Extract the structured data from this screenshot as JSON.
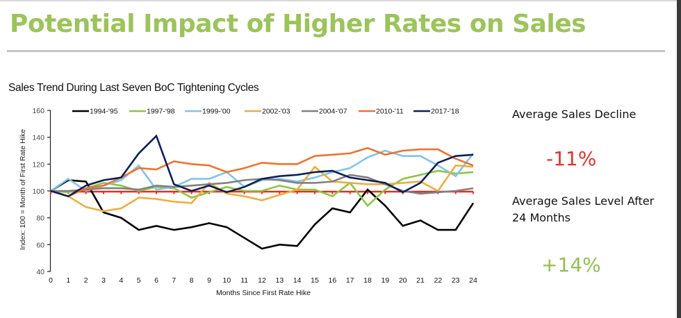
{
  "slide": {
    "title": "Potential Impact of Higher Rates on Sales"
  },
  "stats": {
    "decline_label": "Average Sales Decline",
    "decline_value": "-11%",
    "decline_color": "#e0332a",
    "level_label_line1": "Average Sales Level After",
    "level_label_line2": "24 Months",
    "level_value": "+14%",
    "level_color": "#8fc04e"
  },
  "chart_data": {
    "type": "line",
    "title": "Sales Trend During Last Seven BoC Tightening Cycles",
    "xlabel": "Months Since First Rate Hike",
    "ylabel": "Index: 100 = Month of First Rate Hike",
    "x": [
      0,
      1,
      2,
      3,
      4,
      5,
      6,
      7,
      8,
      9,
      10,
      11,
      12,
      13,
      14,
      15,
      16,
      17,
      18,
      19,
      20,
      21,
      22,
      23,
      24
    ],
    "xlim": [
      0,
      24
    ],
    "ylim": [
      40,
      160
    ],
    "yticks": [
      40,
      60,
      80,
      100,
      120,
      140,
      160
    ],
    "grid": false,
    "legend_position": "top",
    "reference_line": {
      "value": 100,
      "color": "#ee2a1b"
    },
    "series": [
      {
        "name": "1994-'95",
        "color": "#000000",
        "values": [
          100,
          108,
          107,
          84,
          80,
          71,
          74,
          71,
          73,
          76,
          73,
          65,
          57,
          60,
          59,
          75,
          87,
          84,
          101,
          89,
          74,
          78,
          71,
          71,
          91
        ]
      },
      {
        "name": "1997-'98",
        "color": "#8cc63f",
        "values": [
          100,
          99,
          102,
          106,
          104,
          100,
          103,
          102,
          95,
          99,
          103,
          100,
          100,
          104,
          101,
          101,
          96,
          106,
          89,
          101,
          109,
          112,
          115,
          113,
          114
        ]
      },
      {
        "name": "1999-'00",
        "color": "#7fc4ea",
        "values": [
          100,
          109,
          100,
          104,
          108,
          119,
          101,
          103,
          109,
          109,
          114,
          103,
          108,
          109,
          107,
          110,
          114,
          117,
          125,
          130,
          126,
          126,
          119,
          111,
          128
        ]
      },
      {
        "name": "2002-'03",
        "color": "#f0ac3c",
        "values": [
          100,
          96,
          88,
          85,
          87,
          95,
          94,
          92,
          91,
          106,
          98,
          96,
          93,
          97,
          101,
          118,
          107,
          106,
          105,
          105,
          106,
          107,
          100,
          119,
          118
        ]
      },
      {
        "name": "2004-'07",
        "color": "#808080",
        "values": [
          100,
          100,
          101,
          102,
          102,
          101,
          104,
          103,
          104,
          105,
          106,
          108,
          109,
          108,
          106,
          106,
          107,
          112,
          110,
          105,
          100,
          98,
          99,
          100,
          102
        ]
      },
      {
        "name": "2010-'11",
        "color": "#f2722c",
        "values": [
          100,
          96,
          102,
          104,
          110,
          117,
          116,
          122,
          120,
          119,
          114,
          117,
          121,
          120,
          120,
          126,
          127,
          128,
          132,
          127,
          130,
          131,
          131,
          124,
          119
        ]
      },
      {
        "name": "2017-'18",
        "color": "#0c1f5c",
        "values": [
          100,
          96,
          104,
          108,
          110,
          128,
          141,
          105,
          100,
          104,
          99,
          103,
          109,
          111,
          112,
          114,
          115,
          110,
          108,
          106,
          99,
          106,
          121,
          126,
          127
        ]
      }
    ]
  }
}
